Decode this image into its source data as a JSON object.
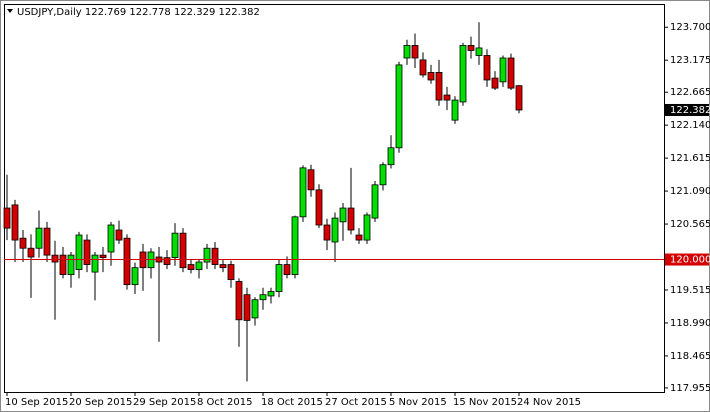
{
  "chart_data": {
    "type": "candlestick",
    "title": "USDJPY,Daily  122.769 122.778 122.329 122.382",
    "categories": [
      "10 Sep 2015",
      null,
      null,
      null,
      null,
      null,
      null,
      null,
      "20 Sep 2015",
      null,
      null,
      null,
      null,
      null,
      null,
      null,
      "29 Sep 2015",
      null,
      null,
      null,
      null,
      null,
      null,
      null,
      "8 Oct 2015",
      null,
      null,
      null,
      null,
      null,
      null,
      null,
      "18 Oct 2015",
      null,
      null,
      null,
      null,
      null,
      null,
      null,
      "27 Oct 2015",
      null,
      null,
      null,
      null,
      null,
      null,
      null,
      "5 Nov 2015",
      null,
      null,
      null,
      null,
      null,
      null,
      null,
      "15 Nov 2015",
      null,
      null,
      null,
      null,
      null,
      null,
      null,
      "24 Nov 2015"
    ],
    "open": [
      120.82,
      120.87,
      120.34,
      120.18,
      120.18,
      120.5,
      120.07,
      120.07,
      119.76,
      119.84,
      120.31,
      119.8,
      120.07,
      120.12,
      120.47,
      120.34,
      119.6,
      120.12,
      119.87,
      120.04,
      120.03,
      120.03,
      120.42,
      119.92,
      119.84,
      119.96,
      120.18,
      119.92,
      119.92,
      119.65,
      119.44,
      119.07,
      119.36,
      119.42,
      119.49,
      119.92,
      119.76,
      120.68,
      121.43,
      121.11,
      120.55,
      120.28,
      120.6,
      120.82,
      120.39,
      120.31,
      120.66,
      121.19,
      121.51,
      121.78,
      123.21,
      123.41,
      123.18,
      122.98,
      122.98,
      122.62,
      122.22,
      122.51,
      123.41,
      123.25,
      123.25,
      122.89,
      122.83,
      123.21,
      122.769
    ],
    "high": [
      121.35,
      120.95,
      120.47,
      120.4,
      120.78,
      120.6,
      120.3,
      120.2,
      120.12,
      120.44,
      120.4,
      120.12,
      120.2,
      120.6,
      120.62,
      120.4,
      119.95,
      120.25,
      120.18,
      120.2,
      120.15,
      120.58,
      120.5,
      120.0,
      120.0,
      120.25,
      120.28,
      120.0,
      119.98,
      119.7,
      119.55,
      119.4,
      119.55,
      119.55,
      120.0,
      120.05,
      120.7,
      121.5,
      121.51,
      121.2,
      120.65,
      120.75,
      120.9,
      121.46,
      120.5,
      120.75,
      121.25,
      121.55,
      121.98,
      123.15,
      123.5,
      123.6,
      123.3,
      123.1,
      123.18,
      122.75,
      122.6,
      123.45,
      123.55,
      123.78,
      123.35,
      123.0,
      123.25,
      123.28,
      122.778
    ],
    "low": [
      120.31,
      119.96,
      119.96,
      119.39,
      120.03,
      119.96,
      119.04,
      119.7,
      119.55,
      119.7,
      119.8,
      119.35,
      119.8,
      119.9,
      120.25,
      119.52,
      119.45,
      119.5,
      119.7,
      118.69,
      119.85,
      119.9,
      119.8,
      119.78,
      119.7,
      119.85,
      119.85,
      119.8,
      119.55,
      118.61,
      118.06,
      118.95,
      119.2,
      119.3,
      119.4,
      119.7,
      119.7,
      120.6,
      121.0,
      120.5,
      120.15,
      119.96,
      120.3,
      120.4,
      120.25,
      120.25,
      120.6,
      121.1,
      121.45,
      121.7,
      123.1,
      123.05,
      122.9,
      122.8,
      122.45,
      122.38,
      122.16,
      122.45,
      123.2,
      123.1,
      122.75,
      122.7,
      122.75,
      122.7,
      122.329
    ],
    "close": [
      120.5,
      120.31,
      120.18,
      120.04,
      120.5,
      120.07,
      119.96,
      119.76,
      120.07,
      120.39,
      119.92,
      120.07,
      120.03,
      120.55,
      120.31,
      119.6,
      119.87,
      119.87,
      120.12,
      119.96,
      119.92,
      120.42,
      119.87,
      119.84,
      119.96,
      120.18,
      119.92,
      119.87,
      119.68,
      119.04,
      119.03,
      119.36,
      119.44,
      119.49,
      119.92,
      119.76,
      120.68,
      121.46,
      121.11,
      120.55,
      120.31,
      120.66,
      120.82,
      120.47,
      120.31,
      120.71,
      121.19,
      121.51,
      121.78,
      123.1,
      123.41,
      123.21,
      122.94,
      122.86,
      122.54,
      122.54,
      122.54,
      123.41,
      123.33,
      123.37,
      122.86,
      122.73,
      123.21,
      122.73,
      122.382
    ],
    "up_color": "#00e000",
    "down_color": "#d40000",
    "ylim": [
      117.89,
      124.07
    ],
    "yticks": [
      {
        "value": 123.7,
        "label": "123.700"
      },
      123.175,
      122.665,
      {
        "value": 122.14,
        "label": "122.140"
      },
      121.615,
      {
        "value": 121.09,
        "label": "121.090"
      },
      120.565,
      119.515,
      {
        "value": 118.99,
        "label": "118.990"
      },
      118.465,
      117.955
    ],
    "hline": {
      "value": 120,
      "label": "120.000",
      "color": "#d40000"
    },
    "last_price": {
      "value": 122.382,
      "label": "122.382"
    },
    "grid": false
  }
}
